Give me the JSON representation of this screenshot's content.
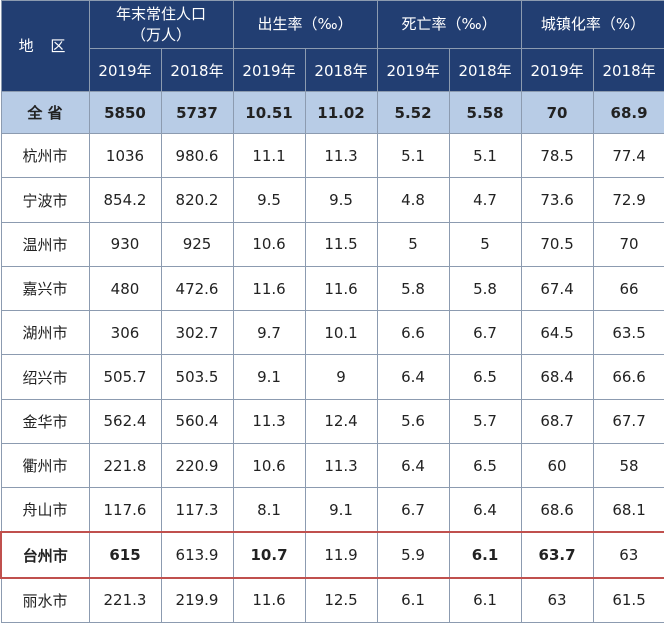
{
  "header": {
    "region": "地 区",
    "groups": [
      "年末常住人口\n（万人）",
      "出生率（‰）",
      "死亡率（‰）",
      "城镇化率（%）"
    ],
    "years": [
      "2019年",
      "2018年",
      "2019年",
      "2018年",
      "2019年",
      "2018年",
      "2019年",
      "2018年"
    ]
  },
  "total": {
    "name": "全 省",
    "cells": [
      "5850",
      "5737",
      "10.51",
      "11.02",
      "5.52",
      "5.58",
      "70",
      "68.9"
    ]
  },
  "rows": [
    {
      "name": "杭州市",
      "cells": [
        "1036",
        "980.6",
        "11.1",
        "11.3",
        "5.1",
        "5.1",
        "78.5",
        "77.4"
      ]
    },
    {
      "name": "宁波市",
      "cells": [
        "854.2",
        "820.2",
        "9.5",
        "9.5",
        "4.8",
        "4.7",
        "73.6",
        "72.9"
      ]
    },
    {
      "name": "温州市",
      "cells": [
        "930",
        "925",
        "10.6",
        "11.5",
        "5",
        "5",
        "70.5",
        "70"
      ]
    },
    {
      "name": "嘉兴市",
      "cells": [
        "480",
        "472.6",
        "11.6",
        "11.6",
        "5.8",
        "5.8",
        "67.4",
        "66"
      ]
    },
    {
      "name": "湖州市",
      "cells": [
        "306",
        "302.7",
        "9.7",
        "10.1",
        "6.6",
        "6.7",
        "64.5",
        "63.5"
      ]
    },
    {
      "name": "绍兴市",
      "cells": [
        "505.7",
        "503.5",
        "9.1",
        "9",
        "6.4",
        "6.5",
        "68.4",
        "66.6"
      ]
    },
    {
      "name": "金华市",
      "cells": [
        "562.4",
        "560.4",
        "11.3",
        "12.4",
        "5.6",
        "5.7",
        "68.7",
        "67.7"
      ]
    },
    {
      "name": "衢州市",
      "cells": [
        "221.8",
        "220.9",
        "10.6",
        "11.3",
        "6.4",
        "6.5",
        "60",
        "58"
      ]
    },
    {
      "name": "舟山市",
      "cells": [
        "117.6",
        "117.3",
        "8.1",
        "9.1",
        "6.7",
        "6.4",
        "68.6",
        "68.1"
      ]
    },
    {
      "name": "台州市",
      "cells": [
        "615",
        "613.9",
        "10.7",
        "11.9",
        "5.9",
        "6.1",
        "63.7",
        "63"
      ]
    },
    {
      "name": "丽水市",
      "cells": [
        "221.3",
        "219.9",
        "11.6",
        "12.5",
        "6.1",
        "6.1",
        "63",
        "61.5"
      ]
    }
  ],
  "highlight_color": "#c0504d",
  "header_color": "#223e72",
  "total_row_color": "#b8cce6"
}
